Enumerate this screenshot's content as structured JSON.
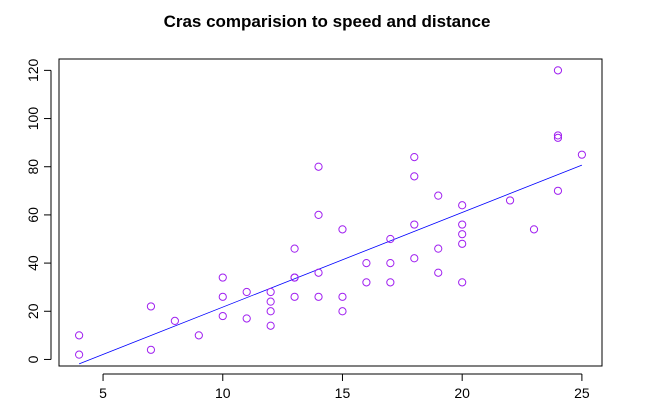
{
  "chart_data": {
    "type": "scatter",
    "title": "Cras comparision to speed and distance",
    "xlabel": "",
    "ylabel": "",
    "xlim": [
      3.16,
      25.84
    ],
    "ylim": [
      -2.72,
      124.72
    ],
    "x_ticks": [
      5,
      10,
      15,
      20,
      25
    ],
    "y_ticks": [
      0,
      20,
      40,
      60,
      80,
      100,
      120
    ],
    "point_color": "#a020f0",
    "line_color": "#0000ff",
    "grid": false,
    "legend": "none",
    "points": [
      {
        "x": 4,
        "y": 2
      },
      {
        "x": 4,
        "y": 10
      },
      {
        "x": 7,
        "y": 4
      },
      {
        "x": 7,
        "y": 22
      },
      {
        "x": 8,
        "y": 16
      },
      {
        "x": 9,
        "y": 10
      },
      {
        "x": 10,
        "y": 18
      },
      {
        "x": 10,
        "y": 26
      },
      {
        "x": 10,
        "y": 34
      },
      {
        "x": 11,
        "y": 17
      },
      {
        "x": 11,
        "y": 28
      },
      {
        "x": 12,
        "y": 14
      },
      {
        "x": 12,
        "y": 20
      },
      {
        "x": 12,
        "y": 24
      },
      {
        "x": 12,
        "y": 28
      },
      {
        "x": 13,
        "y": 26
      },
      {
        "x": 13,
        "y": 34
      },
      {
        "x": 13,
        "y": 34
      },
      {
        "x": 13,
        "y": 46
      },
      {
        "x": 14,
        "y": 26
      },
      {
        "x": 14,
        "y": 36
      },
      {
        "x": 14,
        "y": 60
      },
      {
        "x": 14,
        "y": 80
      },
      {
        "x": 15,
        "y": 20
      },
      {
        "x": 15,
        "y": 26
      },
      {
        "x": 15,
        "y": 54
      },
      {
        "x": 16,
        "y": 32
      },
      {
        "x": 16,
        "y": 40
      },
      {
        "x": 17,
        "y": 32
      },
      {
        "x": 17,
        "y": 40
      },
      {
        "x": 17,
        "y": 50
      },
      {
        "x": 18,
        "y": 42
      },
      {
        "x": 18,
        "y": 56
      },
      {
        "x": 18,
        "y": 76
      },
      {
        "x": 18,
        "y": 84
      },
      {
        "x": 19,
        "y": 36
      },
      {
        "x": 19,
        "y": 46
      },
      {
        "x": 19,
        "y": 68
      },
      {
        "x": 20,
        "y": 32
      },
      {
        "x": 20,
        "y": 48
      },
      {
        "x": 20,
        "y": 52
      },
      {
        "x": 20,
        "y": 56
      },
      {
        "x": 20,
        "y": 64
      },
      {
        "x": 22,
        "y": 66
      },
      {
        "x": 23,
        "y": 54
      },
      {
        "x": 24,
        "y": 70
      },
      {
        "x": 24,
        "y": 92
      },
      {
        "x": 24,
        "y": 93
      },
      {
        "x": 24,
        "y": 120
      },
      {
        "x": 25,
        "y": 85
      }
    ],
    "regression": {
      "intercept": -17.58,
      "slope": 3.93,
      "x_range": [
        4,
        25
      ]
    }
  }
}
